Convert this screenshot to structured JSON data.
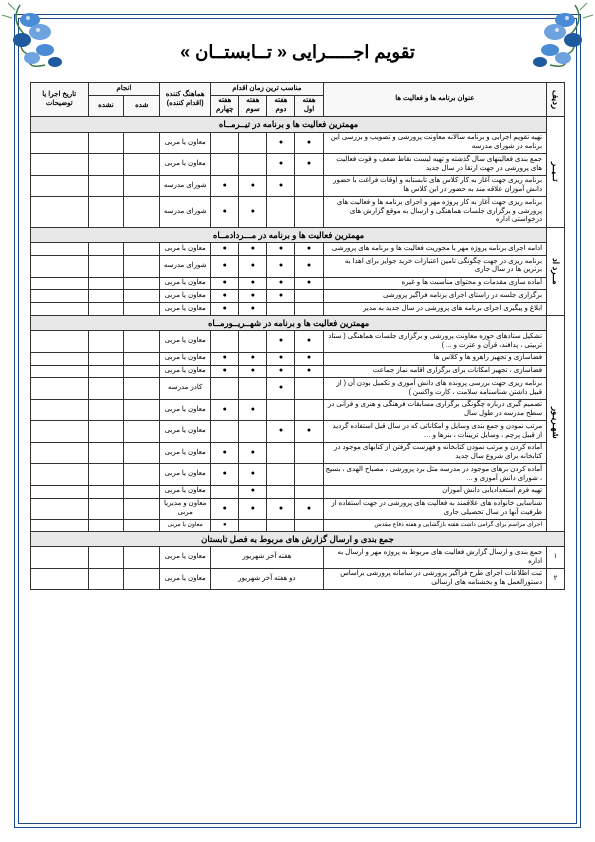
{
  "title": "تقویم اجـــــرایی « تــابستــان »",
  "headers": {
    "row": "ردیف",
    "activity": "عنوان برنامه ها و فعالیت ها",
    "timing": "مناسب ترین زمان اقدام",
    "week1": "هفته اول",
    "week2": "هفته دوم",
    "week3": "هفته سوم",
    "week4": "هفته چهارم",
    "coordinator": "هماهنگ کننده (اقدام کننده)",
    "exec": "انجام",
    "done": "شده",
    "notdone": "نشده",
    "notes": "تاریخ اجرا یا توضیحات"
  },
  "colors": {
    "border": "#1a4a8a",
    "flower_blue": "#4a8bd6",
    "flower_blue2": "#6fa3e0",
    "flower_dark": "#1e5a9e",
    "leaf": "#3a7a46",
    "leaf2": "#5a9a60"
  },
  "months": {
    "tir": {
      "label": "تــیــر",
      "section": "مهمترین فعالیت ها و برنامه در  تیــرمــاه",
      "rows": [
        {
          "a": "تهیه تقویم اجرایی و برنامه سالانه معاونت پرورشی و تصویب و بررسی این برنامه در شورای مدرسه",
          "w": [
            1,
            1,
            0,
            0
          ],
          "c": "معاون یا مربی"
        },
        {
          "a": "جمع بندی فعالیتهای سال گذشته و تهیه لیست نقاط ضعف و قوت فعالیت های پرورشی در جهت ارتقا در سال جدید",
          "w": [
            1,
            1,
            0,
            0
          ],
          "c": "معاون یا مربی"
        },
        {
          "a": "برنامه ریزی جهت آغاز به کار کلاس های تابستانه و اوقات فراغت با حضور دانش آموزان علاقه مند به حضور در این کلاس ها",
          "w": [
            0,
            1,
            1,
            1
          ],
          "c": "شورای مدرسه"
        },
        {
          "a": "برنامه ریزی جهت آغاز به کار پروژه مهر و اجرای برنامه ها و فعالیت های پرورشی و برگزاری جلسات هماهنگی و ارسال به موقع گزارش های درخواستی اداره",
          "w": [
            0,
            0,
            1,
            1
          ],
          "c": "شورای مدرسه"
        }
      ]
    },
    "mordad": {
      "label": "مــرد اد",
      "section": "مهمترین فعالیت ها و برنامه در  مـــردادمــاه",
      "rows": [
        {
          "a": "ادامه اجرای برنامه پروژه مهر با محوریت فعالیت ها و برنامه های پرورشی",
          "w": [
            1,
            1,
            1,
            1
          ],
          "c": "معاون یا مربی"
        },
        {
          "a": "برنامه ریزی در جهت چگونگی تامین اعتبارات خرید جوایز برای اهدا به برترین ها در سال جاری",
          "w": [
            1,
            1,
            1,
            1
          ],
          "c": "شورای مدرسه"
        },
        {
          "a": "آماده سازی مقدمات و محتوای مناسبت ها و غیره",
          "w": [
            1,
            1,
            1,
            1
          ],
          "c": "معاون یا مربی"
        },
        {
          "a": "برگزاری جلسه در راستای اجرای برنامه فراگیر پرورشی",
          "w": [
            0,
            1,
            1,
            1
          ],
          "c": "معاون یا مربی"
        },
        {
          "a": "ابلاغ و پیگیری اجرای  برنامه های پرورشی در سال جدید به مدیر",
          "w": [
            0,
            0,
            1,
            1
          ],
          "c": "معاون یا مربی"
        }
      ]
    },
    "shahrivar": {
      "label": "شهـریـور",
      "section": "مهمترین فعالیت ها و برنامه در  شهــریــورمــاه",
      "rows": [
        {
          "a": "تشکیل ستادهای حوزه معاونت پرورشی و برگزاری جلسات هماهنگی ( ستاد تربیتی ، پدافند، قرآن و عترت و ... )",
          "w": [
            1,
            1,
            0,
            0
          ],
          "c": "معاون یا مربی"
        },
        {
          "a": "فضاسازی  و تجهیز راهرو ها و کلاس ها",
          "w": [
            1,
            1,
            1,
            1
          ],
          "c": "معاون یا مربی"
        },
        {
          "a": "فضاسازی  ، تجهیز امکانات برای برگزاری اقامه نماز جماعت",
          "w": [
            1,
            1,
            1,
            1
          ],
          "c": "معاون یا مربی"
        },
        {
          "a": "برنامه ریزی جهت بررسی پرونده های دانش آموزی و تکمیل بودن آن ( از قبیل داشتن شناسنامه سلامت ، کارت واکسن )",
          "w": [
            0,
            1,
            0,
            0
          ],
          "c": "کادر مدرسه"
        },
        {
          "a": "تصمیم گیری درباره چگونگی برگزاری مسابقات فرهنگی و هنری و قرآنی در سطح مدرسه در طول سال",
          "w": [
            0,
            0,
            1,
            1
          ],
          "c": "معاون یا مربی"
        },
        {
          "a": "مرتب نمودن و جمع بندی وسایل و امکاناتی که در سال قبل استفاده گردید از قبیل پرچم ، وسایل تزیینات ، بنرها و …",
          "w": [
            1,
            1,
            0,
            0
          ],
          "c": "معاون یا مربی"
        },
        {
          "a": "آماده کردن و مرتب نمودن کتابخانه و فهرست گرفتن از کتابهای موجود در کتابخانه برای شروع سال جدید",
          "w": [
            0,
            0,
            1,
            1
          ],
          "c": "معاون یا مربی"
        },
        {
          "a": "آماده کردن برهای موجود در مدرسه مثل برد پرورشی ، مصباح الهدی ، بسیج ، شورای دانش آموزی و ...",
          "w": [
            0,
            0,
            1,
            1
          ],
          "c": "معاون یا مربی"
        },
        {
          "a": "تهیه فرم استعدادیابی دانش آموزان",
          "w": [
            0,
            0,
            1,
            0
          ],
          "c": "معاون یا مربی"
        },
        {
          "a": "شناسایی خانواده های علاقمند به فعالیت های پرورشی در جهت استفاده از ظرفیت آنها در سال تحصیلی جاری",
          "w": [
            1,
            1,
            1,
            1
          ],
          "c": "معاون و مدیریا مربی"
        },
        {
          "a": "اجرای مراسم برای گرامی داشت هفته بازگشایی و هفته دفاع مقدس",
          "w": [
            0,
            0,
            0,
            1
          ],
          "c": "معاون یا مربی",
          "small": true
        }
      ]
    }
  },
  "summary": {
    "section": "جمع بندی و ارسال گزارش های مربوط به فصل تابستان",
    "rows": [
      {
        "n": "۱",
        "a": "جمع بندی و ارسال گزارش فعالیت های مربوط به پروژه مهر و ارسال به اداره",
        "t": "هفته آخر شهریور",
        "c": "معاون یا مربی"
      },
      {
        "n": "۲",
        "a": "ثبت اطلاعات اجرای طرح فراگیر پرورشی در سامانه پرورشی براساس دستورالعمل ها و بخشنامه های ارسالی",
        "t": "دو هفته آخر شهریور",
        "c": "معاون یا مربی"
      }
    ]
  }
}
